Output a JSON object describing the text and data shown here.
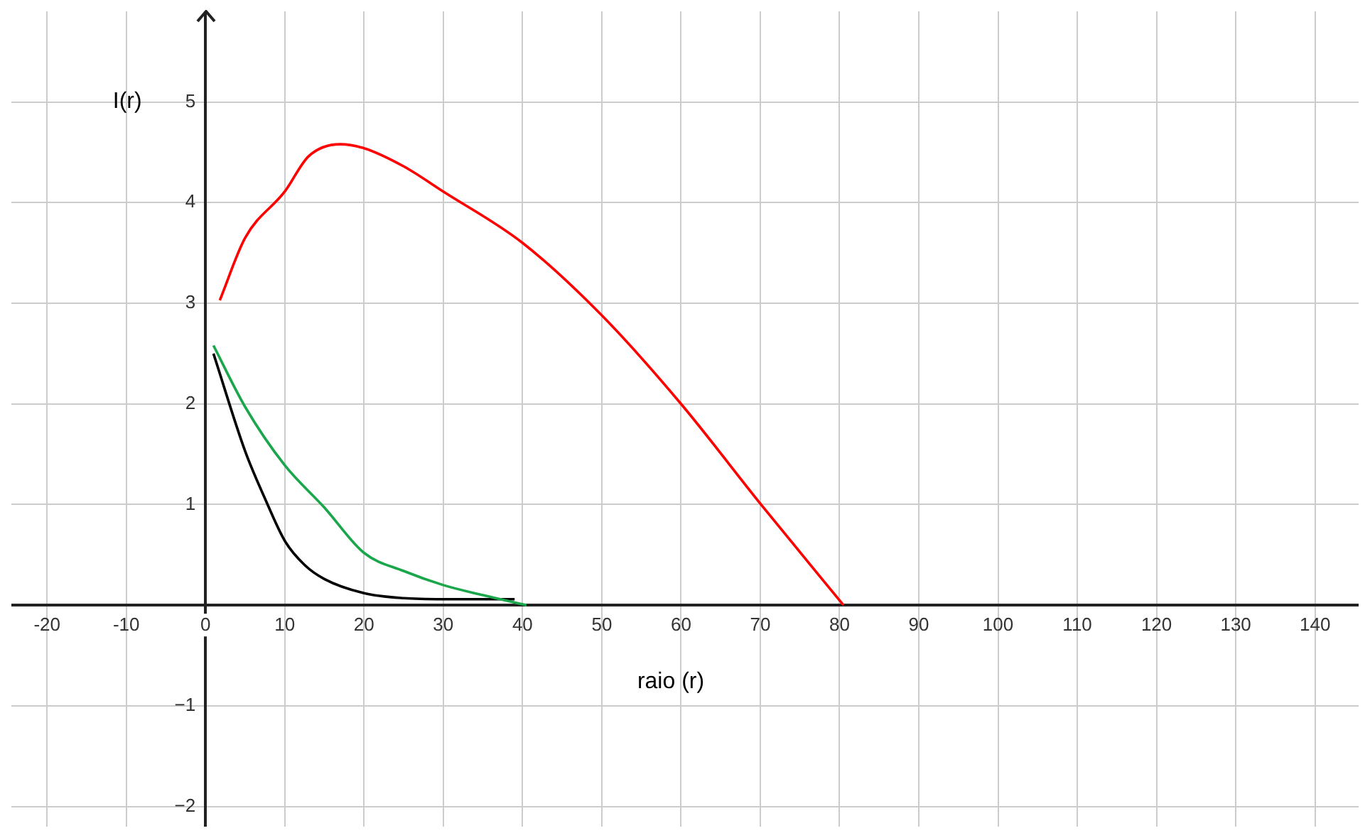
{
  "chart_data": {
    "type": "line",
    "xlabel": "raio (r)",
    "ylabel": "I(r)",
    "xlim": [
      -24.5,
      145.5
    ],
    "ylim": [
      -2.2,
      5.9
    ],
    "xticks": [
      -20,
      -10,
      0,
      10,
      20,
      30,
      40,
      50,
      60,
      70,
      80,
      90,
      100,
      110,
      120,
      130,
      140
    ],
    "yticks": [
      {
        "value": -2,
        "label": "−2"
      },
      {
        "value": -1,
        "label": "−1"
      },
      1,
      2,
      3,
      4,
      5
    ],
    "grid": true,
    "legend": false,
    "marker": "none",
    "line_style": "solid",
    "series": [
      {
        "color": "#ff0000",
        "x": [
          1.8,
          5,
          10,
          13,
          17,
          20,
          25,
          30,
          40,
          50,
          60,
          70,
          80.5
        ],
        "values": [
          3.03,
          3.65,
          4.11,
          4.46,
          4.58,
          4.54,
          4.36,
          4.11,
          3.6,
          2.88,
          2.0,
          1.01,
          0.0
        ]
      },
      {
        "color": "#1aa64a",
        "x": [
          1,
          5,
          10,
          15,
          20,
          25,
          30,
          35,
          40.5
        ],
        "values": [
          2.58,
          1.97,
          1.39,
          0.97,
          0.52,
          0.34,
          0.2,
          0.1,
          0.0
        ]
      },
      {
        "color": "#000000",
        "x": [
          1,
          5,
          7.5,
          10,
          12.5,
          15,
          20,
          25,
          30,
          39
        ],
        "values": [
          2.5,
          1.53,
          1.06,
          0.64,
          0.4,
          0.26,
          0.12,
          0.07,
          0.06,
          0.06
        ]
      }
    ]
  }
}
